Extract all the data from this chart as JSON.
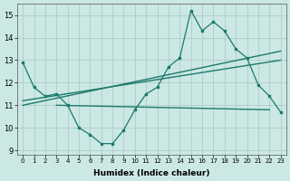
{
  "xlabel": "Humidex (Indice chaleur)",
  "ylabel": "",
  "bg_color": "#cce8e4",
  "grid_color": "#b0ccc8",
  "line_color": "#1a7a6e",
  "xlim": [
    -0.5,
    23.5
  ],
  "ylim": [
    8.8,
    15.5
  ],
  "xticks": [
    0,
    1,
    2,
    3,
    4,
    5,
    6,
    7,
    8,
    9,
    10,
    11,
    12,
    13,
    14,
    15,
    16,
    17,
    18,
    19,
    20,
    21,
    22,
    23
  ],
  "yticks": [
    9,
    10,
    11,
    12,
    13,
    14,
    15
  ],
  "data_x": [
    0,
    1,
    2,
    3,
    4,
    5,
    6,
    7,
    8,
    9,
    10,
    11,
    12,
    13,
    14,
    15,
    16,
    17,
    18,
    19,
    20,
    21,
    22,
    23
  ],
  "data_y": [
    12.9,
    11.8,
    11.4,
    11.5,
    11.0,
    10.0,
    9.7,
    9.3,
    9.3,
    9.9,
    10.8,
    11.5,
    11.8,
    12.7,
    13.1,
    15.2,
    14.3,
    14.7,
    14.3,
    13.5,
    13.1,
    11.9,
    11.4,
    10.7
  ],
  "trend1_x": [
    0,
    23
  ],
  "trend1_y": [
    11.0,
    13.4
  ],
  "trend2_x": [
    3,
    22
  ],
  "trend2_y": [
    11.0,
    10.8
  ],
  "trend3_x": [
    0,
    23
  ],
  "trend3_y": [
    11.2,
    13.0
  ]
}
